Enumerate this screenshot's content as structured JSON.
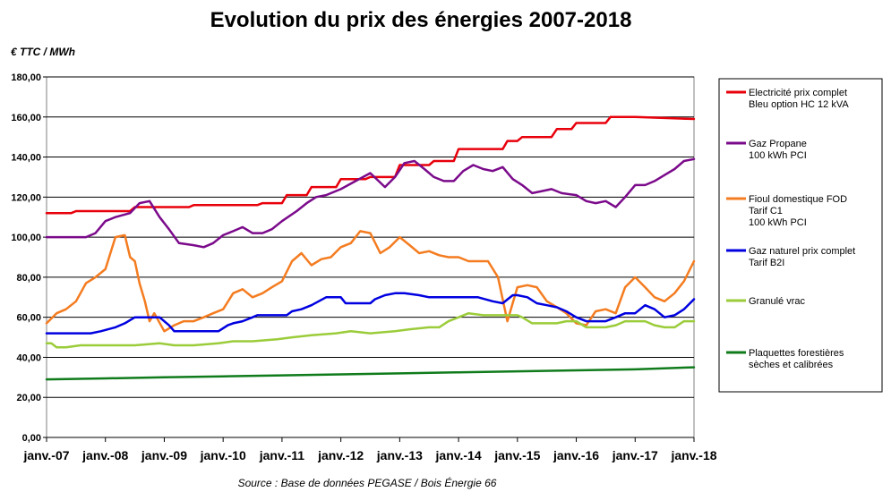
{
  "chart_data": {
    "type": "line",
    "title": "Evolution du prix des énergies 2007-2018",
    "ylabel": "€ TTC / MWh",
    "source": "Source : Base de données PEGASE / Bois Énergie 66",
    "ylim": [
      0,
      180
    ],
    "yticks": [
      "0,00",
      "20,00",
      "40,00",
      "60,00",
      "80,00",
      "100,00",
      "120,00",
      "140,00",
      "160,00",
      "180,00"
    ],
    "ytick_values": [
      0,
      20,
      40,
      60,
      80,
      100,
      120,
      140,
      160,
      180
    ],
    "xlim": [
      2007.0,
      2018.0
    ],
    "xticks": [
      "janv.-07",
      "janv.-08",
      "janv.-09",
      "janv.-10",
      "janv.-11",
      "janv.-12",
      "janv.-13",
      "janv.-14",
      "janv.-15",
      "janv.-16",
      "janv.-17",
      "janv.-18"
    ],
    "xtick_values": [
      2007,
      2008,
      2009,
      2010,
      2011,
      2012,
      2013,
      2014,
      2015,
      2016,
      2017,
      2018
    ],
    "grid": "horizontal",
    "legend_position": "right",
    "series": [
      {
        "name": "Electricité prix complet Bleu option HC 12 kVA",
        "label_lines": [
          "Electricité prix complet",
          "Bleu option HC 12 kVA"
        ],
        "color": "#e8000b",
        "x": [
          2007.0,
          2007.42,
          2007.5,
          2008.42,
          2008.5,
          2009.42,
          2009.5,
          2010.58,
          2010.67,
          2011.0,
          2011.08,
          2011.42,
          2011.5,
          2011.92,
          2012.0,
          2012.42,
          2012.5,
          2012.92,
          2013.0,
          2013.5,
          2013.58,
          2013.92,
          2014.0,
          2014.75,
          2014.83,
          2015.0,
          2015.08,
          2015.58,
          2015.67,
          2015.92,
          2016.0,
          2016.5,
          2016.58,
          2017.0,
          2018.0
        ],
        "y": [
          112,
          112,
          113,
          113,
          115,
          115,
          116,
          116,
          117,
          117,
          121,
          121,
          125,
          125,
          129,
          129,
          130,
          130,
          136,
          136,
          138,
          138,
          144,
          144,
          148,
          148,
          150,
          150,
          154,
          154,
          157,
          157,
          160,
          160,
          159
        ]
      },
      {
        "name": "Gaz Propane 100 kWh PCI",
        "label_lines": [
          "Gaz Propane",
          "100 kWh PCI"
        ],
        "color": "#7b0a8b",
        "x": [
          2007.0,
          2007.67,
          2007.83,
          2008.0,
          2008.17,
          2008.42,
          2008.58,
          2008.75,
          2008.92,
          2009.08,
          2009.25,
          2009.5,
          2009.67,
          2009.83,
          2010.0,
          2010.17,
          2010.33,
          2010.5,
          2010.67,
          2010.83,
          2011.0,
          2011.25,
          2011.42,
          2011.58,
          2011.75,
          2012.0,
          2012.25,
          2012.5,
          2012.75,
          2012.92,
          2013.08,
          2013.25,
          2013.42,
          2013.58,
          2013.75,
          2013.92,
          2014.08,
          2014.25,
          2014.42,
          2014.58,
          2014.75,
          2014.92,
          2015.08,
          2015.25,
          2015.42,
          2015.58,
          2015.75,
          2016.0,
          2016.17,
          2016.33,
          2016.5,
          2016.67,
          2016.83,
          2017.0,
          2017.17,
          2017.33,
          2017.5,
          2017.67,
          2017.83,
          2018.0
        ],
        "y": [
          100,
          100,
          102,
          108,
          110,
          112,
          117,
          118,
          110,
          104,
          97,
          96,
          95,
          97,
          101,
          103,
          105,
          102,
          102,
          104,
          108,
          113,
          117,
          120,
          121,
          124,
          128,
          132,
          125,
          130,
          137,
          138,
          134,
          130,
          128,
          128,
          133,
          136,
          134,
          133,
          135,
          129,
          126,
          122,
          123,
          124,
          122,
          121,
          118,
          117,
          118,
          115,
          120,
          126,
          126,
          128,
          131,
          134,
          138,
          139
        ]
      },
      {
        "name": "Fioul domestique FOD Tarif C1 100 kWh PCI",
        "label_lines": [
          "Fioul domestique  FOD",
          "Tarif C1",
          "100 kWh PCI"
        ],
        "color": "#f47c20",
        "x": [
          2007.0,
          2007.17,
          2007.33,
          2007.5,
          2007.67,
          2007.83,
          2008.0,
          2008.17,
          2008.33,
          2008.42,
          2008.5,
          2008.58,
          2008.67,
          2008.75,
          2008.83,
          2009.0,
          2009.17,
          2009.33,
          2009.5,
          2009.67,
          2009.83,
          2010.0,
          2010.17,
          2010.33,
          2010.5,
          2010.67,
          2010.83,
          2011.0,
          2011.17,
          2011.33,
          2011.5,
          2011.67,
          2011.83,
          2012.0,
          2012.17,
          2012.33,
          2012.5,
          2012.67,
          2012.83,
          2013.0,
          2013.17,
          2013.33,
          2013.5,
          2013.67,
          2013.83,
          2014.0,
          2014.17,
          2014.33,
          2014.5,
          2014.67,
          2014.83,
          2015.0,
          2015.17,
          2015.33,
          2015.5,
          2015.67,
          2015.83,
          2016.0,
          2016.17,
          2016.33,
          2016.5,
          2016.67,
          2016.83,
          2017.0,
          2017.17,
          2017.33,
          2017.5,
          2017.67,
          2017.83,
          2018.0
        ],
        "y": [
          57,
          62,
          64,
          68,
          77,
          80,
          84,
          100,
          101,
          90,
          88,
          77,
          68,
          58,
          62,
          53,
          56,
          58,
          58,
          60,
          62,
          64,
          72,
          74,
          70,
          72,
          75,
          78,
          88,
          92,
          86,
          89,
          90,
          95,
          97,
          103,
          102,
          92,
          95,
          100,
          96,
          92,
          93,
          91,
          90,
          90,
          88,
          88,
          88,
          80,
          58,
          75,
          76,
          75,
          68,
          65,
          62,
          57,
          56,
          63,
          64,
          62,
          75,
          80,
          75,
          70,
          68,
          72,
          78,
          88
        ]
      },
      {
        "name": "Gaz naturel prix complet Tarif B2I",
        "label_lines": [
          "Gaz naturel prix complet",
          "Tarif B2I"
        ],
        "color": "#0000e0",
        "x": [
          2007.0,
          2007.75,
          2007.92,
          2008.17,
          2008.33,
          2008.5,
          2008.92,
          2009.08,
          2009.17,
          2009.5,
          2009.92,
          2010.08,
          2010.17,
          2010.33,
          2010.5,
          2010.58,
          2010.67,
          2011.08,
          2011.17,
          2011.33,
          2011.5,
          2011.75,
          2012.0,
          2012.08,
          2012.5,
          2012.58,
          2012.75,
          2012.92,
          2013.08,
          2013.33,
          2013.5,
          2013.75,
          2014.0,
          2014.17,
          2014.33,
          2014.58,
          2014.75,
          2014.92,
          2015.0,
          2015.17,
          2015.33,
          2015.5,
          2015.67,
          2015.83,
          2016.0,
          2016.17,
          2016.33,
          2016.5,
          2016.67,
          2016.83,
          2017.0,
          2017.17,
          2017.33,
          2017.5,
          2017.67,
          2017.83,
          2018.0
        ],
        "y": [
          52,
          52,
          53,
          55,
          57,
          60,
          60,
          56,
          53,
          53,
          53,
          56,
          57,
          58,
          60,
          61,
          61,
          61,
          63,
          64,
          66,
          70,
          70,
          67,
          67,
          69,
          71,
          72,
          72,
          71,
          70,
          70,
          70,
          70,
          70,
          68,
          67,
          71,
          71,
          70,
          67,
          66,
          65,
          63,
          60,
          58,
          58,
          58,
          60,
          62,
          62,
          66,
          64,
          60,
          61,
          64,
          69
        ]
      },
      {
        "name": "Granulé vrac",
        "label_lines": [
          "Granulé vrac"
        ],
        "color": "#9bcc3a",
        "x": [
          2007.0,
          2007.08,
          2007.17,
          2007.33,
          2007.58,
          2007.92,
          2008.17,
          2008.5,
          2008.92,
          2009.17,
          2009.5,
          2009.92,
          2010.17,
          2010.5,
          2010.92,
          2011.17,
          2011.5,
          2011.92,
          2012.17,
          2012.5,
          2012.92,
          2013.17,
          2013.5,
          2013.67,
          2013.83,
          2014.0,
          2014.17,
          2014.42,
          2014.67,
          2014.92,
          2015.0,
          2015.08,
          2015.25,
          2015.5,
          2015.67,
          2015.83,
          2016.0,
          2016.17,
          2016.5,
          2016.67,
          2016.83,
          2017.0,
          2017.17,
          2017.33,
          2017.5,
          2017.67,
          2017.83,
          2018.0
        ],
        "y": [
          47,
          47,
          45,
          45,
          46,
          46,
          46,
          46,
          47,
          46,
          46,
          47,
          48,
          48,
          49,
          50,
          51,
          52,
          53,
          52,
          53,
          54,
          55,
          55,
          58,
          60,
          62,
          61,
          61,
          61,
          61,
          60,
          57,
          57,
          57,
          58,
          58,
          55,
          55,
          56,
          58,
          58,
          58,
          56,
          55,
          55,
          58,
          58
        ]
      },
      {
        "name": "Plaquettes forestières sèches et calibrées",
        "label_lines": [
          "Plaquettes forestières",
          "sèches et calibrées"
        ],
        "color": "#0f7b1b",
        "x": [
          2007.0,
          2008.0,
          2009.0,
          2010.0,
          2011.0,
          2012.0,
          2013.0,
          2014.0,
          2015.0,
          2016.0,
          2017.0,
          2018.0
        ],
        "y": [
          29,
          29.5,
          30,
          30.5,
          31,
          31.5,
          32,
          32.5,
          33,
          33.5,
          34,
          35
        ]
      }
    ]
  }
}
